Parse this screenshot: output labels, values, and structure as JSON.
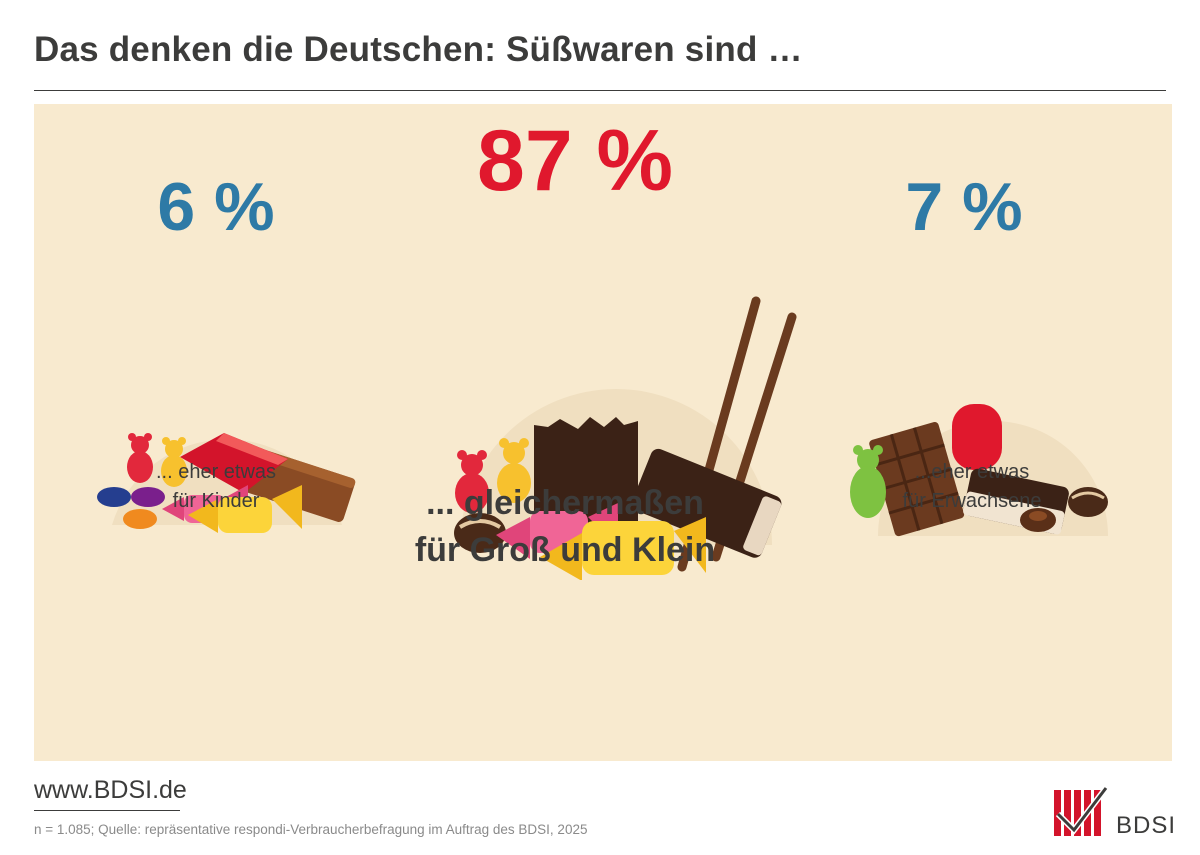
{
  "header": {
    "title": "Das denken die Deutschen: Süßwaren sind …"
  },
  "chart_data": {
    "type": "table",
    "title": "Das denken die Deutschen: Süßwaren sind …",
    "categories": [
      "... eher etwas für Kinder",
      "... gleichermaßen für Groß und Klein",
      "...eher etwas für Erwachsene"
    ],
    "values": [
      6,
      87,
      7
    ],
    "unit": "%",
    "items": [
      {
        "value_label": "6 %",
        "label_line1": "... eher etwas",
        "label_line2": "für Kinder"
      },
      {
        "value_label": "87 %",
        "label_line1": "... gleichermaßen",
        "label_line2": "für Groß und Klein"
      },
      {
        "value_label": "7 %",
        "label_line1": "...eher etwas",
        "label_line2": "für Erwachsene"
      }
    ]
  },
  "colors": {
    "panel": "#f8eacf",
    "blue": "#2e7aa6",
    "red": "#e0182d",
    "text": "#3c3c3b"
  },
  "footer": {
    "url": "www.BDSI.de",
    "source": "n = 1.085; Quelle: repräsentative respondi-Verbraucherbefragung im Auftrag des BDSI, 2025",
    "logo_text": "BDSI"
  }
}
